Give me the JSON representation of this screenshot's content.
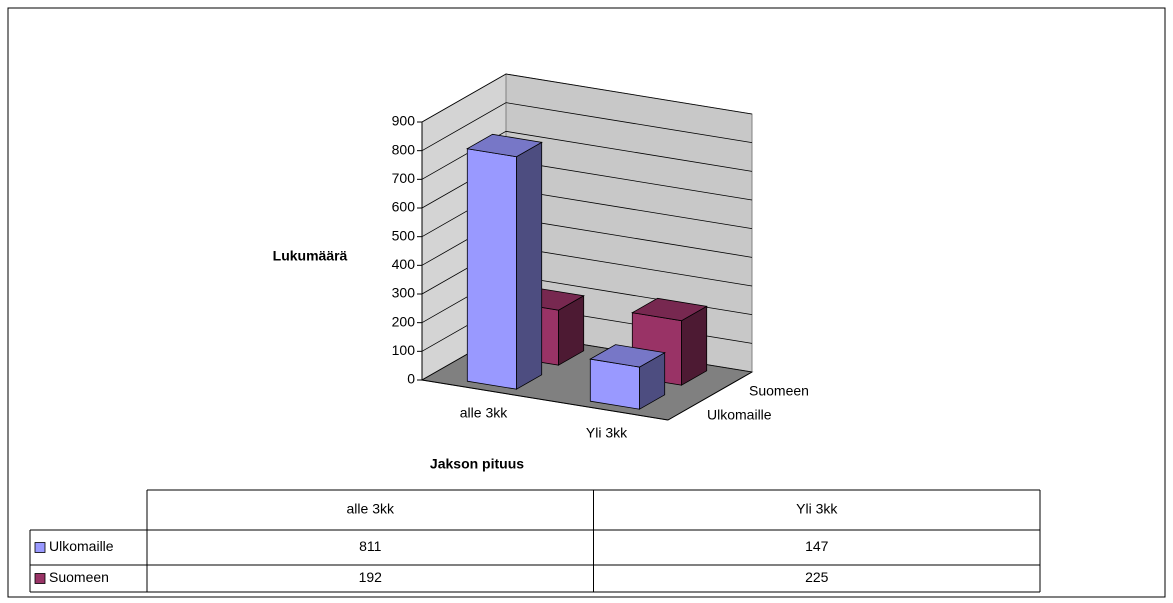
{
  "chart_data": {
    "type": "bar3d",
    "y_label": "Lukumäärä",
    "x_label": "Jakson pituus",
    "categories": [
      "alle 3kk",
      "Yli 3kk"
    ],
    "series": [
      {
        "name": "Ulkomaille",
        "color": "#9999ff",
        "values": [
          811,
          147
        ]
      },
      {
        "name": "Suomeen",
        "color": "#993366",
        "values": [
          192,
          225
        ]
      }
    ],
    "ylim": [
      0,
      900
    ],
    "yticks": [
      0,
      100,
      200,
      300,
      400,
      500,
      600,
      700,
      800,
      900
    ],
    "grid": true,
    "data_table": true
  }
}
